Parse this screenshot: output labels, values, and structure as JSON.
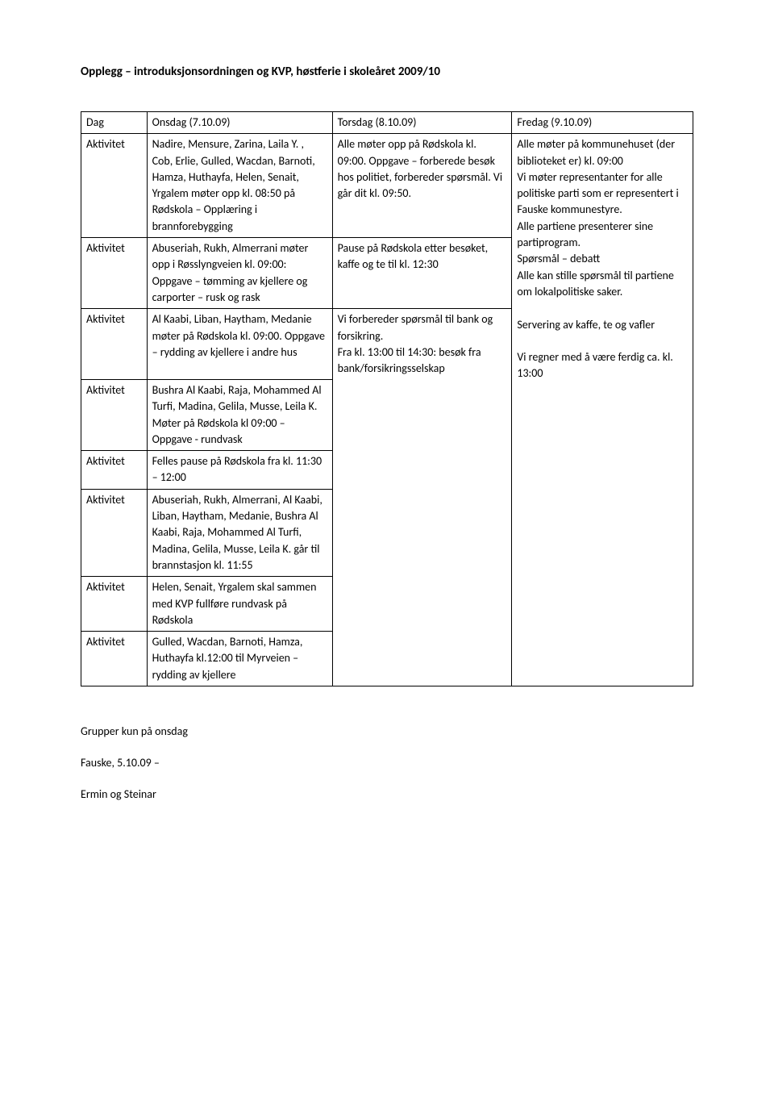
{
  "title": "Opplegg – introduksjonsordningen og KVP, høstferie i skoleåret 2009/10",
  "header": {
    "dag": "Dag",
    "onsdag": "Onsdag (7.10.09)",
    "torsdag": "Torsdag (8.10.09)",
    "fredag": "Fredag (9.10.09)"
  },
  "rows": {
    "r1": {
      "label": "Aktivitet",
      "onsdag": "Nadire, Mensure, Zarina, Laila Y. , Cob, Erlie, Gulled, Wacdan, Barnoti, Hamza, Huthayfa, Helen, Senait, Yrgalem  møter opp kl. 08:50 på Rødskola – Opplæring i brannforebygging",
      "torsdag": "Alle møter opp på Rødskola kl. 09:00. Oppgave – forberede besøk hos politiet, forbereder spørsmål.  Vi går dit kl. 09:50."
    },
    "r2": {
      "label": "Aktivitet",
      "onsdag": "Abuseriah, Rukh, Almerrani møter opp i Røsslyngveien kl. 09:00: Oppgave – tømming av kjellere og carporter – rusk og rask",
      "torsdag": "Pause på Rødskola etter besøket, kaffe og te til kl. 12:30"
    },
    "r3": {
      "label": "Aktivitet",
      "onsdag": "Al Kaabi, Liban, Haytham, Medanie møter på Rødskola kl. 09:00. Oppgave – rydding av kjellere i andre hus",
      "torsdag": "Vi forbereder spørsmål til bank og forsikring.\nFra kl. 13:00 til 14:30: besøk fra bank/forsikringsselskap"
    },
    "r4": {
      "label": "Aktivitet",
      "onsdag": "Bushra Al Kaabi, Raja, Mohammed Al Turfi, Madina, Gelila, Musse, Leila K. Møter på Rødskola kl 09:00 – Oppgave - rundvask"
    },
    "r5": {
      "label": "Aktivitet",
      "onsdag": "Felles pause på Rødskola fra kl. 11:30 – 12:00"
    },
    "r6": {
      "label": "Aktivitet",
      "onsdag": "Abuseriah, Rukh, Almerrani, Al Kaabi, Liban, Haytham, Medanie, Bushra Al Kaabi, Raja, Mohammed Al Turfi, Madina, Gelila, Musse, Leila K. går til brannstasjon kl. 11:55"
    },
    "r7": {
      "label": "Aktivitet",
      "onsdag": "Helen, Senait, Yrgalem  skal sammen med KVP fullføre rundvask på Rødskola"
    },
    "r8": {
      "label": "Aktivitet",
      "onsdag": "Gulled, Wacdan, Barnoti, Hamza, Huthayfa kl.12:00 til Myrveien – rydding av kjellere"
    },
    "fredag_full": "Alle møter på kommunehuset (der biblioteket er) kl. 09:00\nVi møter representanter for alle politiske parti som er representert i Fauske kommunestyre.\nAlle partiene presenterer sine partiprogram.\nSpørsmål – debatt\nAlle kan stille spørsmål til partiene om lokalpolitiske saker.\n\nServering av kaffe, te og vafler\n\nVi regner med å være ferdig ca. kl. 13:00"
  },
  "footer": {
    "line1": "Grupper kun på onsdag",
    "line2": "Fauske, 5.10.09 –",
    "line3": "Ermin og Steinar"
  }
}
